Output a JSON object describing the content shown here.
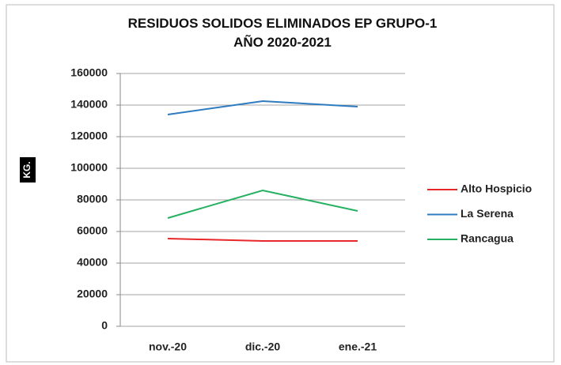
{
  "chart_data": {
    "type": "line",
    "title": "RESIDUOS SOLIDOS ELIMINADOS EP GRUPO-1 AÑO 2020-2021",
    "y_label": "KG.",
    "categories": [
      "nov.-20",
      "dic.-20",
      "ene.-21"
    ],
    "series": [
      {
        "name": "Alto Hospicio",
        "color": "#e8272a",
        "values": [
          55500,
          54000,
          54000
        ]
      },
      {
        "name": "La Serena",
        "color": "#2f7bbf",
        "values": [
          134000,
          142500,
          139000
        ]
      },
      {
        "name": "Rancagua",
        "color": "#26b061",
        "values": [
          68500,
          86000,
          73000
        ]
      }
    ],
    "ylim": [
      0,
      160000
    ],
    "yticks": [
      0,
      20000,
      40000,
      60000,
      80000,
      100000,
      120000,
      140000,
      160000
    ],
    "grid": true,
    "legend": "right"
  }
}
